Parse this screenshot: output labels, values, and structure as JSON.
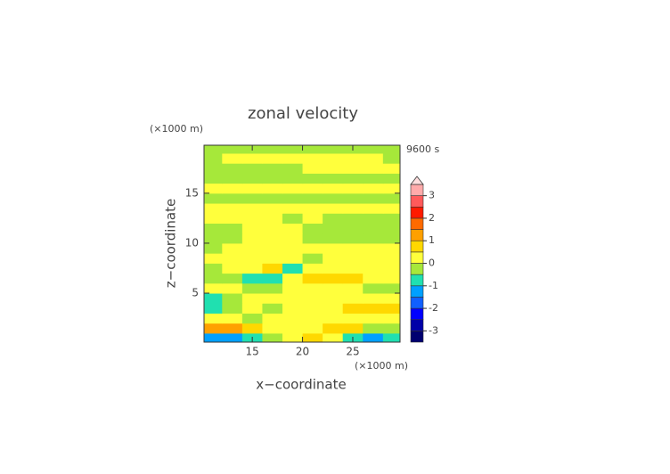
{
  "chart_data": {
    "type": "contour",
    "title": "zonal velocity",
    "x_label": "x−coordinate",
    "y_label": "z−coordinate",
    "x_unit": "(×1000 m)",
    "y_unit": "(×1000 m)",
    "annotation": "9600 s",
    "xlim": [
      10.2,
      29.7
    ],
    "ylim": [
      0.1,
      19.8
    ],
    "xticks": [
      15,
      20,
      25
    ],
    "yticks": [
      5,
      10,
      15
    ],
    "x": [
      11,
      13,
      15,
      17,
      19,
      21,
      23,
      25,
      27,
      29
    ],
    "y": [
      0.5,
      1.5,
      2.5,
      3.5,
      4.5,
      5.5,
      6.5,
      7.5,
      8.5,
      9.5,
      10.5,
      11.5,
      12.5,
      13.5,
      14.5,
      15.5,
      16.5,
      17.5,
      18.5,
      19.5
    ],
    "z": [
      [
        -1.2,
        -1.2,
        -0.8,
        -0.3,
        0.2,
        0.6,
        0.3,
        -0.6,
        -1.2,
        -0.8
      ],
      [
        1.2,
        1.0,
        0.6,
        0.2,
        0.1,
        0.2,
        0.5,
        0.8,
        -0.3,
        -0.2
      ],
      [
        0.2,
        0.1,
        -0.2,
        0.1,
        0.2,
        0.1,
        0.1,
        0.3,
        0.4,
        0.3
      ],
      [
        -0.7,
        -0.3,
        0.1,
        -0.2,
        0.2,
        0.3,
        0.2,
        0.5,
        0.9,
        0.9
      ],
      [
        -0.8,
        -0.4,
        0.1,
        0.2,
        0.1,
        0.2,
        0.3,
        0.2,
        0.3,
        0.2
      ],
      [
        0.2,
        0.3,
        -0.2,
        -0.3,
        0.2,
        0.1,
        0.3,
        0.3,
        -0.4,
        -0.2
      ],
      [
        -0.2,
        -0.3,
        -0.8,
        -0.7,
        0.3,
        0.5,
        0.7,
        0.6,
        0.2,
        0.1
      ],
      [
        -0.1,
        0.1,
        0.2,
        0.8,
        -0.7,
        0.2,
        0.1,
        0.2,
        0.1,
        0.2
      ],
      [
        0.2,
        0.2,
        0.1,
        0.2,
        0.3,
        -0.1,
        0.1,
        0.2,
        0.2,
        0.2
      ],
      [
        -0.1,
        0.2,
        0.2,
        0.2,
        0.1,
        0.2,
        0.2,
        0.2,
        0.2,
        0.1
      ],
      [
        -0.2,
        -0.1,
        0.2,
        0.2,
        0.1,
        -0.2,
        -0.2,
        -0.2,
        -0.2,
        -0.2
      ],
      [
        -0.2,
        -0.2,
        0.1,
        0.2,
        0.2,
        -0.2,
        -0.2,
        -0.2,
        -0.2,
        -0.2
      ],
      [
        0.2,
        0.2,
        0.2,
        0.1,
        -0.2,
        0.2,
        -0.1,
        -0.2,
        -0.2,
        -0.2
      ],
      [
        0.2,
        0.2,
        0.2,
        0.2,
        0.2,
        0.2,
        0.2,
        0.2,
        0.2,
        0.2
      ],
      [
        -0.2,
        -0.2,
        -0.2,
        -0.2,
        -0.2,
        -0.2,
        -0.2,
        -0.2,
        -0.2,
        -0.2
      ],
      [
        0.2,
        0.2,
        0.2,
        0.2,
        0.1,
        0.2,
        0.2,
        0.2,
        0.2,
        0.2
      ],
      [
        -0.2,
        -0.2,
        -0.2,
        -0.2,
        -0.2,
        -0.2,
        -0.2,
        -0.2,
        -0.2,
        -0.2
      ],
      [
        -0.2,
        -0.2,
        -0.2,
        -0.2,
        -0.2,
        0.2,
        0.2,
        0.2,
        0.2,
        0.2
      ],
      [
        -0.2,
        0.2,
        0.2,
        0.2,
        0.2,
        0.2,
        0.2,
        0.2,
        0.2,
        -0.2
      ],
      [
        -0.2,
        -0.2,
        -0.2,
        -0.2,
        -0.2,
        -0.2,
        -0.2,
        -0.2,
        -0.2,
        -0.2
      ]
    ],
    "levels": [
      -3.5,
      -3,
      -2.5,
      -2,
      -1.5,
      -1,
      -0.5,
      0,
      0.5,
      1,
      1.5,
      2,
      2.5,
      3,
      3.5
    ],
    "level_colors": [
      "#000070",
      "#0000a8",
      "#0000ff",
      "#1060ff",
      "#00a0ff",
      "#20e0b0",
      "#a6e83a",
      "#ffff3c",
      "#ffd800",
      "#ffa000",
      "#ff6a00",
      "#ff1a00",
      "#ff5a5a",
      "#ffaaaa"
    ],
    "extend_color": "#ffdede",
    "colorbar_ticks": [
      -3,
      -2,
      -1,
      0,
      1,
      2,
      3
    ]
  }
}
